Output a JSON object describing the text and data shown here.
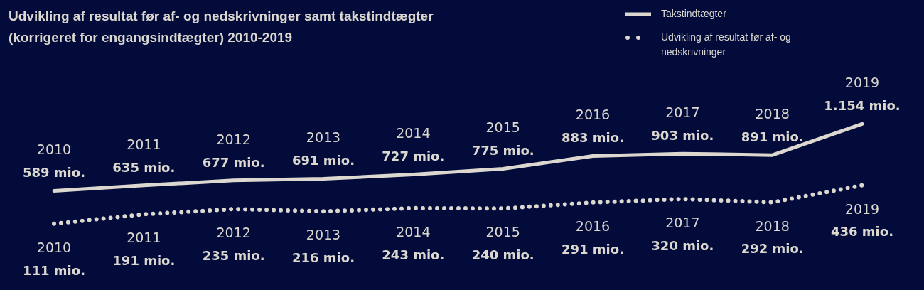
{
  "chart_data": {
    "type": "line",
    "title": "Udvikling af resultat før af- og nedskrivninger samt takstindtægter (korrigeret for engangsindtægter) 2010-2019",
    "categories": [
      "2010",
      "2011",
      "2012",
      "2013",
      "2014",
      "2015",
      "2016",
      "2017",
      "2018",
      "2019"
    ],
    "series": [
      {
        "name": "Takstindtægter",
        "color": "#dcd8d0",
        "line_style": "solid",
        "values": [
          589,
          635,
          677,
          691,
          727,
          775,
          883,
          903,
          891,
          1154
        ],
        "value_labels": [
          "589 mio.",
          "635 mio.",
          "677 mio.",
          "691 mio.",
          "727 mio.",
          "775 mio.",
          "883 mio.",
          "903 mio.",
          "891 mio.",
          "1.154 mio."
        ]
      },
      {
        "name": "Udvikling af resultat før af- og nedskrivninger",
        "color": "#dcd8d0",
        "line_style": "dotted",
        "axis": "y2",
        "values": [
          111,
          191,
          235,
          216,
          243,
          240,
          291,
          320,
          292,
          436
        ],
        "value_labels": [
          "111 mio.",
          "191 mio.",
          "235 mio.",
          "216 mio.",
          "243 mio.",
          "240 mio.",
          "291 mio.",
          "320 mio.",
          "292 mio.",
          "436 mio."
        ]
      }
    ],
    "tick_labels": false,
    "grid": false,
    "legend": "top right",
    "marker": "none"
  }
}
